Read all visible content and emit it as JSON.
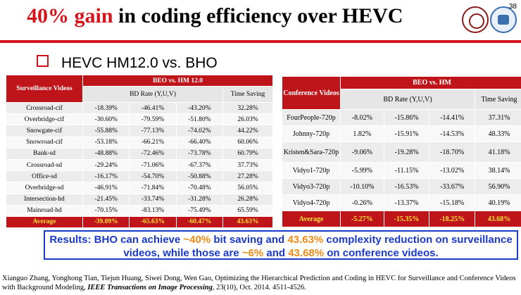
{
  "slide": {
    "title_red": "40% gain",
    "title_rest": " in coding efficiency over HEVC",
    "page_number": "38",
    "subtitle": "HEVC HM12.0 vs. BHO"
  },
  "table1": {
    "header_col": "Surveillance Videos",
    "group": "BEO vs. HM 12.0",
    "bd_rate": "BD Rate (Y,U,V)",
    "time_saving": "Time Saving",
    "rows": [
      {
        "name": "Crossroad-cif",
        "y": "-18.39%",
        "u": "-46.41%",
        "v": "-43.20%",
        "t": "32.28%"
      },
      {
        "name": "Overbridge-cif",
        "y": "-30.60%",
        "u": "-79.59%",
        "v": "-51.80%",
        "t": "26.03%"
      },
      {
        "name": "Snowgate-cif",
        "y": "-55.88%",
        "u": "-77.13%",
        "v": "-74.02%",
        "t": "44.22%"
      },
      {
        "name": "Snowroad-cif",
        "y": "-53.18%",
        "u": "-66.21%",
        "v": "-66.40%",
        "t": "60.06%"
      },
      {
        "name": "Bank-sd",
        "y": "-48.88%",
        "u": "-72.46%",
        "v": "-73.78%",
        "t": "60.79%"
      },
      {
        "name": "Crossroad-sd",
        "y": "-29.24%",
        "u": "-71.06%",
        "v": "-67.37%",
        "t": "37.73%"
      },
      {
        "name": "Office-sd",
        "y": "-16.17%",
        "u": "-54.70%",
        "v": "-50.88%",
        "t": "27.28%"
      },
      {
        "name": "Overbridge-sd",
        "y": "-46.91%",
        "u": "-71.84%",
        "v": "-70.48%",
        "t": "56.05%"
      },
      {
        "name": "Intersection-hd",
        "y": "-21.45%",
        "u": "-33.74%",
        "v": "-31.28%",
        "t": "26.28%"
      },
      {
        "name": "Mainroad-hd",
        "y": "-70.15%",
        "u": "-83.13%",
        "v": "-75.49%",
        "t": "65.59%"
      }
    ],
    "average": {
      "name": "Average",
      "y": "-39.09%",
      "u": "-65.63%",
      "v": "-60.47%",
      "t": "43.63%"
    }
  },
  "table2": {
    "header_col": "Conference Videos",
    "group": "BEO vs. HM",
    "bd_rate": "BD Rate (Y,U,V)",
    "time_saving": "Time Saving",
    "rows": [
      {
        "name": "FourPeople-720p",
        "y": "-8.02%",
        "u": "-15.86%",
        "v": "-14.41%",
        "t": "37.31%"
      },
      {
        "name": "Johnny-720p",
        "y": "1.82%",
        "u": "-15.91%",
        "v": "-14.53%",
        "t": "48.33%"
      },
      {
        "name": "Kristen&Sara-720p",
        "y": "-9.06%",
        "u": "-19.28%",
        "v": "-18.70%",
        "t": "41.18%"
      },
      {
        "name": "Vidyo1-720p",
        "y": "-5.99%",
        "u": "-11.15%",
        "v": "-13.02%",
        "t": "38.14%"
      },
      {
        "name": "Vidyo3-720p",
        "y": "-10.10%",
        "u": "-16.53%",
        "v": "-33.67%",
        "t": "56.90%"
      },
      {
        "name": "Vidyo4-720p",
        "y": "-0.26%",
        "u": "-13.37%",
        "v": "-15.18%",
        "t": "40.19%"
      }
    ],
    "average": {
      "name": "Average",
      "y": "-5.27%",
      "u": "-15.35%",
      "v": "-18.25%",
      "t": "43.68%"
    }
  },
  "results": {
    "p1": "Results: BHO can achieve ",
    "h1": "~40%",
    "p2": " bit saving and ",
    "h2": "43.63%",
    "p3": " complexity reduction on surveillance videos, while those are ",
    "h3": "~6%",
    "p4": " and ",
    "h4": "43.68%",
    "p5": " on conference videos."
  },
  "citation": {
    "authors": "Xianguo Zhang, Yonghong Tian, Tiejun Huang, Siwei Dong, Wen Gao, Optimizing the Hierarchical Prediction and Coding in HEVC for Surveillance and Conference Videos with Background Modeling, ",
    "journal": "IEEE Transactions on Image Processing",
    "details": ", 23(10), Oct. 2014. 4511-4526."
  },
  "colors": {
    "accent_red": "#d4141d",
    "highlight_orange": "#ef8a16",
    "results_blue": "#1a39c8",
    "average_yellow": "#f6e633"
  }
}
